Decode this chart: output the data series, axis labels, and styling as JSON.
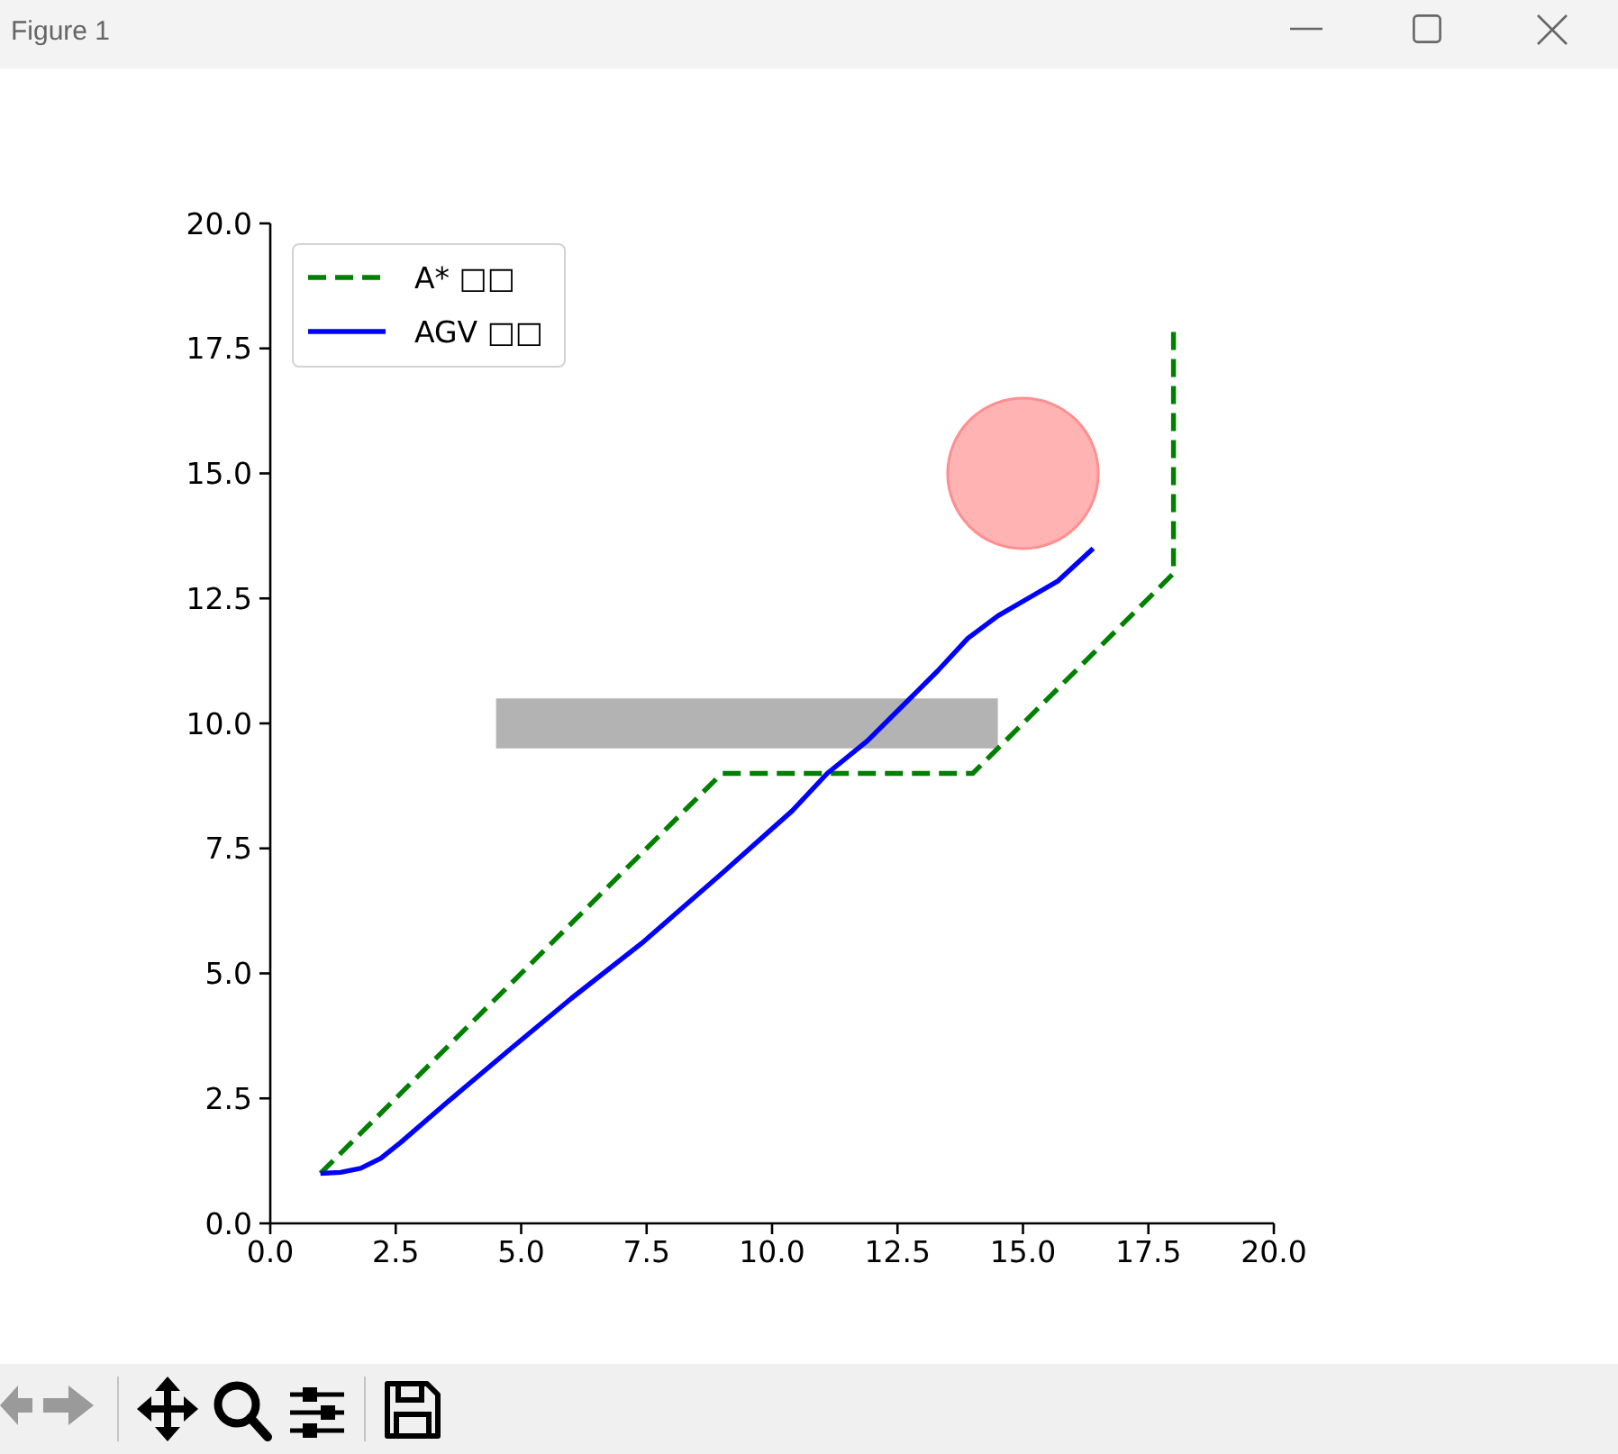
{
  "chart_data": {
    "type": "line",
    "title": "Figure 1",
    "xlim": [
      0,
      20
    ],
    "ylim": [
      0,
      20
    ],
    "xticks": [
      {
        "value": 0,
        "label": "0.0"
      },
      2.5,
      {
        "value": 5,
        "label": "5.0"
      },
      7.5,
      {
        "value": 10,
        "label": "10.0"
      },
      12.5,
      {
        "value": 15,
        "label": "15.0"
      },
      17.5,
      {
        "value": 20,
        "label": "20.0"
      }
    ],
    "yticks": [
      {
        "value": 0,
        "label": "0.0"
      },
      2.5,
      {
        "value": 5,
        "label": "5.0"
      },
      7.5,
      {
        "value": 10,
        "label": "10.0"
      },
      12.5,
      {
        "value": 15,
        "label": "15.0"
      },
      17.5,
      {
        "value": 20,
        "label": "20.0"
      }
    ],
    "legend": "top left",
    "series": [
      {
        "type": "area",
        "color": "#b3b3b3",
        "x": [
          4.5,
          14.5
        ],
        "values": [
          null,
          null
        ],
        "lower": [
          9.5,
          9.5
        ],
        "upper": [
          10.5,
          10.5
        ]
      },
      {
        "type": "bubble",
        "color": "#ffb3b3",
        "x": [
          15
        ],
        "values": [
          15
        ],
        "sizes": [
          1
        ]
      },
      {
        "name": "A* □□",
        "color": "#008000",
        "line_style": "dashed",
        "x": [
          1,
          9,
          14,
          18,
          18
        ],
        "values": [
          1,
          9,
          9,
          13,
          18
        ]
      },
      {
        "name": "AGV □□",
        "color": "#0000ff",
        "line_style": "solid",
        "x": [
          1,
          1.4,
          1.8,
          2.2,
          2.6,
          3.5,
          4.8,
          6,
          7.4,
          9,
          10.4,
          11.1,
          11.9,
          12.8,
          13.3,
          13.9,
          14.5,
          15.1,
          15.7,
          16.4
        ],
        "values": [
          1,
          1.02,
          1.1,
          1.3,
          1.62,
          2.4,
          3.5,
          4.5,
          5.6,
          7,
          8.25,
          9,
          9.65,
          10.55,
          11.05,
          11.7,
          12.15,
          12.5,
          12.85,
          13.5
        ]
      }
    ]
  }
}
